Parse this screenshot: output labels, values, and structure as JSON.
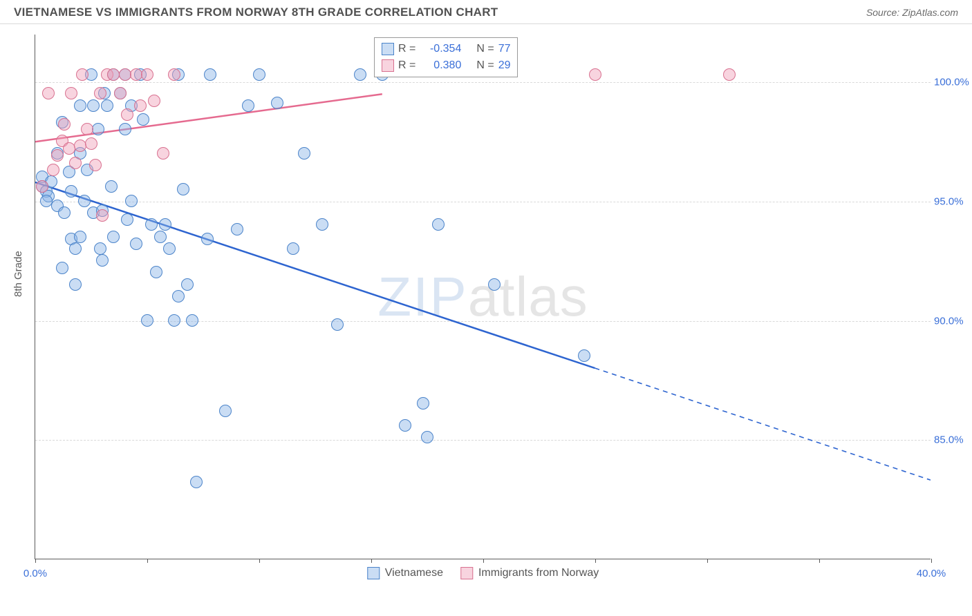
{
  "header": {
    "title": "VIETNAMESE VS IMMIGRANTS FROM NORWAY 8TH GRADE CORRELATION CHART",
    "source_prefix": "Source: ",
    "source_name": "ZipAtlas.com"
  },
  "watermark": {
    "part1": "ZIP",
    "part2": "atlas"
  },
  "chart": {
    "type": "scatter",
    "ylabel": "8th Grade",
    "xlim": [
      0,
      40
    ],
    "ylim": [
      80,
      102
    ],
    "x_ticks": [
      0,
      5,
      10,
      15,
      20,
      25,
      30,
      35,
      40
    ],
    "x_tick_labels": {
      "0": "0.0%",
      "40": "40.0%"
    },
    "y_gridlines": [
      85,
      90,
      95,
      100
    ],
    "y_tick_labels": {
      "85": "85.0%",
      "90": "90.0%",
      "95": "95.0%",
      "100": "100.0%"
    },
    "grid_color": "#d9d9d9",
    "axis_color": "#5b5b5b",
    "background": "#ffffff",
    "marker_radius": 9,
    "marker_border": 1.2,
    "series": [
      {
        "name": "Vietnamese",
        "fill": "rgba(137, 180, 230, 0.45)",
        "stroke": "#4a83c9",
        "line_color": "#2d64d0",
        "r_value": "-0.354",
        "n_value": "77",
        "trend": {
          "x1": 0,
          "y1": 95.8,
          "x2": 25,
          "y2": 88.0,
          "x2_dash": 40,
          "y2_dash": 83.3
        },
        "points": [
          [
            0.3,
            96.0
          ],
          [
            0.3,
            95.6
          ],
          [
            0.5,
            95.4
          ],
          [
            0.6,
            95.2
          ],
          [
            0.5,
            95.0
          ],
          [
            0.7,
            95.8
          ],
          [
            1.0,
            94.8
          ],
          [
            1.0,
            97.0
          ],
          [
            1.2,
            98.3
          ],
          [
            1.2,
            92.2
          ],
          [
            1.3,
            94.5
          ],
          [
            1.5,
            96.2
          ],
          [
            1.6,
            95.4
          ],
          [
            1.6,
            93.4
          ],
          [
            1.8,
            93.0
          ],
          [
            1.8,
            91.5
          ],
          [
            2.0,
            97.0
          ],
          [
            2.0,
            93.5
          ],
          [
            2.0,
            99.0
          ],
          [
            2.2,
            95.0
          ],
          [
            2.3,
            96.3
          ],
          [
            2.5,
            100.3
          ],
          [
            2.6,
            99.0
          ],
          [
            2.6,
            94.5
          ],
          [
            2.8,
            98.0
          ],
          [
            2.9,
            93.0
          ],
          [
            3.0,
            94.6
          ],
          [
            3.0,
            92.5
          ],
          [
            3.1,
            99.5
          ],
          [
            3.2,
            99.0
          ],
          [
            3.4,
            95.6
          ],
          [
            3.5,
            93.5
          ],
          [
            3.5,
            100.3
          ],
          [
            3.8,
            99.5
          ],
          [
            4.0,
            100.3
          ],
          [
            4.0,
            98.0
          ],
          [
            4.1,
            94.2
          ],
          [
            4.3,
            99.0
          ],
          [
            4.3,
            95.0
          ],
          [
            4.5,
            93.2
          ],
          [
            4.7,
            100.3
          ],
          [
            4.8,
            98.4
          ],
          [
            5.0,
            90.0
          ],
          [
            5.2,
            94.0
          ],
          [
            5.4,
            92.0
          ],
          [
            5.6,
            93.5
          ],
          [
            5.8,
            94.0
          ],
          [
            6.0,
            93.0
          ],
          [
            6.2,
            90.0
          ],
          [
            6.4,
            91.0
          ],
          [
            6.4,
            100.3
          ],
          [
            6.6,
            95.5
          ],
          [
            6.8,
            91.5
          ],
          [
            7.0,
            90.0
          ],
          [
            7.2,
            83.2
          ],
          [
            7.7,
            93.4
          ],
          [
            7.8,
            100.3
          ],
          [
            8.5,
            86.2
          ],
          [
            9.0,
            93.8
          ],
          [
            9.5,
            99.0
          ],
          [
            10.0,
            100.3
          ],
          [
            10.8,
            99.1
          ],
          [
            11.5,
            93.0
          ],
          [
            12.0,
            97.0
          ],
          [
            12.8,
            94.0
          ],
          [
            13.5,
            89.8
          ],
          [
            14.5,
            100.3
          ],
          [
            15.5,
            100.3
          ],
          [
            16.5,
            85.6
          ],
          [
            17.3,
            86.5
          ],
          [
            17.5,
            85.1
          ],
          [
            18.0,
            94.0
          ],
          [
            20.5,
            91.5
          ],
          [
            24.5,
            88.5
          ]
        ]
      },
      {
        "name": "Immigrants from Norway",
        "fill": "rgba(240, 160, 185, 0.45)",
        "stroke": "#d8708f",
        "line_color": "#e56a8f",
        "r_value": "0.380",
        "n_value": "29",
        "trend": {
          "x1": 0,
          "y1": 97.5,
          "x2": 15.5,
          "y2": 99.5,
          "x2_dash": null,
          "y2_dash": null
        },
        "points": [
          [
            0.3,
            95.6
          ],
          [
            0.6,
            99.5
          ],
          [
            0.8,
            96.3
          ],
          [
            1.0,
            96.9
          ],
          [
            1.2,
            97.5
          ],
          [
            1.3,
            98.2
          ],
          [
            1.5,
            97.2
          ],
          [
            1.6,
            99.5
          ],
          [
            1.8,
            96.6
          ],
          [
            2.0,
            97.3
          ],
          [
            2.1,
            100.3
          ],
          [
            2.3,
            98.0
          ],
          [
            2.5,
            97.4
          ],
          [
            2.7,
            96.5
          ],
          [
            2.9,
            99.5
          ],
          [
            3.0,
            94.4
          ],
          [
            3.2,
            100.3
          ],
          [
            3.5,
            100.3
          ],
          [
            3.8,
            99.5
          ],
          [
            4.0,
            100.3
          ],
          [
            4.1,
            98.6
          ],
          [
            4.5,
            100.3
          ],
          [
            4.7,
            99.0
          ],
          [
            5.0,
            100.3
          ],
          [
            5.3,
            99.2
          ],
          [
            5.7,
            97.0
          ],
          [
            6.2,
            100.3
          ],
          [
            25.0,
            100.3
          ],
          [
            31.0,
            100.3
          ]
        ]
      }
    ],
    "stats_legend": {
      "r_label": "R =",
      "n_label": "N ="
    },
    "bottom_legend": [
      {
        "label": "Vietnamese",
        "series_idx": 0
      },
      {
        "label": "Immigrants from Norway",
        "series_idx": 1
      }
    ]
  }
}
